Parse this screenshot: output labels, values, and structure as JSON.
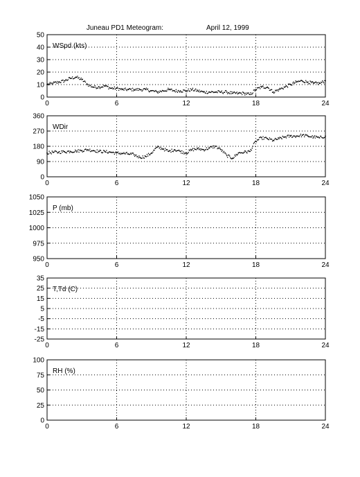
{
  "figure": {
    "title": "Juneau PD1 Meteogram:",
    "date": "April 12, 1999"
  },
  "chart_data": [
    {
      "type": "scatter",
      "ylabel": "WSpd (kts)",
      "xlim": [
        0,
        24
      ],
      "ylim": [
        0,
        50
      ],
      "xticks": [
        0,
        6,
        12,
        18,
        24
      ],
      "yticks": [
        0,
        10,
        20,
        30,
        40,
        50
      ],
      "grid": true,
      "series": [
        {
          "x": [
            0,
            0.5,
            1,
            1.5,
            2,
            2.5,
            3,
            3.5,
            4,
            4.5,
            5,
            5.5,
            6,
            6.5,
            7,
            7.5,
            8,
            8.5,
            9,
            9.5,
            10,
            10.5,
            11,
            11.5,
            12,
            12.5,
            13,
            13.5,
            14,
            14.5,
            15,
            15.5,
            16,
            16.5,
            17,
            17.5,
            18,
            18.5,
            19,
            19.5,
            20,
            20.5,
            21,
            21.5,
            22,
            22.5,
            23,
            23.5,
            24
          ],
          "y": [
            10,
            11,
            12,
            13,
            15,
            16,
            14,
            10,
            8,
            8,
            9,
            7,
            7,
            6,
            6,
            6,
            6,
            6,
            5,
            4,
            5,
            6,
            5,
            5,
            5,
            6,
            5,
            4,
            4,
            4,
            4,
            4,
            3,
            3,
            3,
            2,
            6,
            8,
            8,
            4,
            6,
            8,
            10,
            12,
            13,
            12,
            11,
            11,
            13
          ]
        }
      ]
    },
    {
      "type": "scatter",
      "ylabel": "WDir",
      "xlim": [
        0,
        24
      ],
      "ylim": [
        0,
        360
      ],
      "xticks": [
        0,
        6,
        12,
        18,
        24
      ],
      "yticks": [
        0,
        90,
        180,
        270,
        360
      ],
      "grid": true,
      "series": [
        {
          "x": [
            0,
            0.5,
            1,
            1.5,
            2,
            2.5,
            3,
            3.5,
            4,
            4.5,
            5,
            5.5,
            6,
            6.5,
            7,
            7.5,
            8,
            8.5,
            9,
            9.5,
            10,
            10.5,
            11,
            11.5,
            12,
            12.5,
            13,
            13.5,
            14,
            14.5,
            15,
            15.5,
            16,
            16.5,
            17,
            17.5,
            18,
            18.5,
            19,
            19.5,
            20,
            20.5,
            21,
            21.5,
            22,
            22.5,
            23,
            23.5,
            24
          ],
          "y": [
            140,
            145,
            145,
            148,
            150,
            152,
            155,
            160,
            155,
            150,
            148,
            145,
            140,
            138,
            135,
            130,
            115,
            120,
            140,
            175,
            165,
            150,
            160,
            150,
            140,
            160,
            165,
            160,
            170,
            180,
            160,
            125,
            110,
            140,
            145,
            150,
            210,
            230,
            225,
            215,
            225,
            235,
            240,
            240,
            245,
            240,
            235,
            230,
            240
          ]
        }
      ]
    },
    {
      "type": "scatter",
      "ylabel": "P (mb)",
      "xlim": [
        0,
        24
      ],
      "ylim": [
        950,
        1050
      ],
      "xticks": [
        0,
        6,
        12,
        18,
        24
      ],
      "yticks": [
        950,
        975,
        1000,
        1025,
        1050
      ],
      "grid": true,
      "series": []
    },
    {
      "type": "scatter",
      "ylabel": "T,Td (C)",
      "xlim": [
        0,
        24
      ],
      "ylim": [
        -25,
        35
      ],
      "xticks": [
        0,
        6,
        12,
        18,
        24
      ],
      "yticks": [
        -25,
        -15,
        -5,
        5,
        15,
        25,
        35
      ],
      "grid": true,
      "series": []
    },
    {
      "type": "scatter",
      "ylabel": "RH (%)",
      "xlim": [
        0,
        24
      ],
      "ylim": [
        0,
        100
      ],
      "xticks": [
        0,
        6,
        12,
        18,
        24
      ],
      "yticks": [
        0,
        25,
        50,
        75,
        100
      ],
      "grid": true,
      "series": []
    }
  ]
}
